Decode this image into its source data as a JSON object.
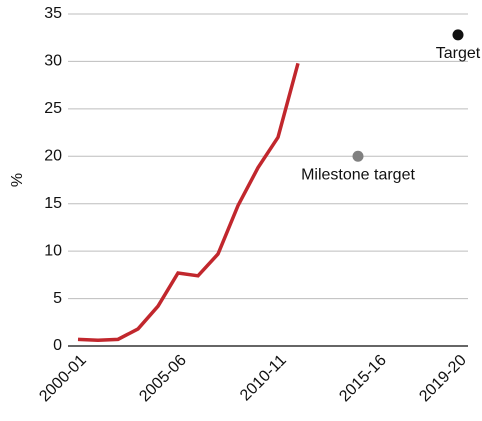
{
  "chart_data": {
    "type": "line",
    "y_label": "%",
    "categories": [
      "2000-01",
      null,
      null,
      null,
      null,
      "2005-06",
      null,
      null,
      null,
      null,
      "2010-11",
      null,
      null,
      null,
      null,
      "2015-16",
      null,
      null,
      null,
      "2019-20"
    ],
    "series": [
      {
        "name": null,
        "color": "#c1272d",
        "values": [
          0.7,
          0.6,
          0.7,
          1.8,
          4.2,
          7.7,
          7.4,
          9.7,
          14.8,
          18.8,
          22,
          29.8,
          null,
          null,
          null,
          null,
          null,
          null,
          null,
          null
        ]
      },
      {
        "name": "Milestone target",
        "color": "#808080",
        "marker": true,
        "values": [
          null,
          null,
          null,
          null,
          null,
          null,
          null,
          null,
          null,
          null,
          null,
          null,
          null,
          null,
          20,
          null,
          null,
          null,
          null,
          null
        ]
      },
      {
        "name": "Target",
        "color": "#111111",
        "marker": true,
        "values": [
          null,
          null,
          null,
          null,
          null,
          null,
          null,
          null,
          null,
          null,
          null,
          null,
          null,
          null,
          null,
          null,
          null,
          null,
          null,
          32.8
        ]
      }
    ],
    "ylim": [
      0,
      35
    ],
    "yticks": [
      0,
      5,
      10,
      15,
      20,
      25,
      30,
      35
    ],
    "grid": true,
    "legend": false
  }
}
